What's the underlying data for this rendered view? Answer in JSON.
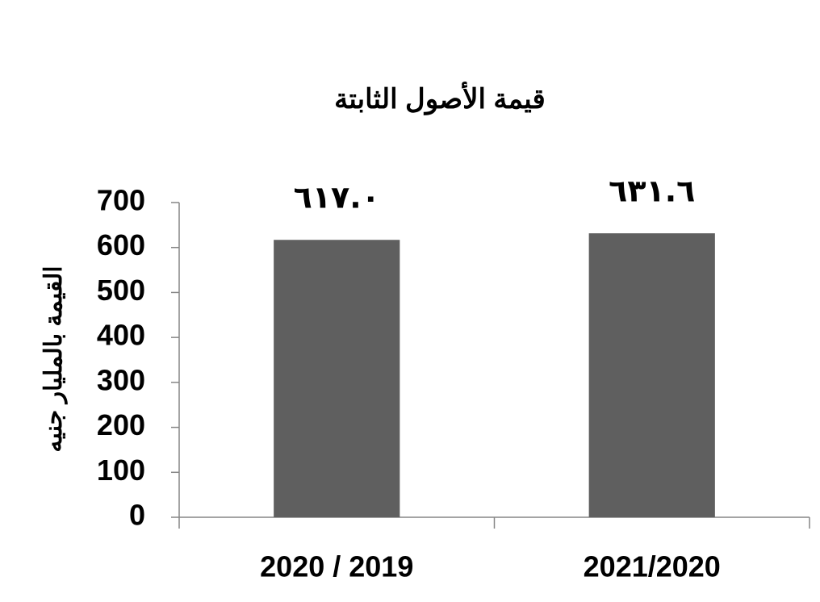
{
  "chart_data": {
    "type": "bar",
    "title": "قيمة الأصول الثابتة",
    "y_label": "القيمة بالمليار جنيه",
    "categories": [
      "2020 / 2019",
      "2021/2020"
    ],
    "values": [
      617.0,
      631.6
    ],
    "value_labels": [
      "٦١٧.٠",
      "٦٣١.٦"
    ],
    "color": "#5f5f5f",
    "ylim": [
      0,
      700
    ],
    "yticks": [
      0,
      100,
      200,
      300,
      400,
      500,
      600,
      700
    ],
    "grid": false
  }
}
